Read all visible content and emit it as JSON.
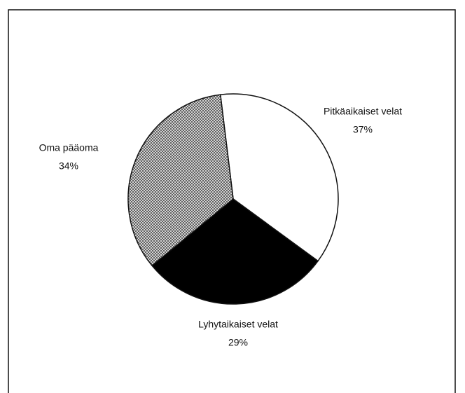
{
  "chart_data": {
    "type": "pie",
    "categories": [
      "Pitkäaikaiset velat",
      "Lyhytaikaiset velat",
      "Oma pääoma"
    ],
    "values": [
      37,
      29,
      34
    ],
    "value_labels": [
      "37%",
      "29%",
      "34%"
    ],
    "colors": [
      "#ffffff",
      "#000000",
      "#888888"
    ]
  }
}
